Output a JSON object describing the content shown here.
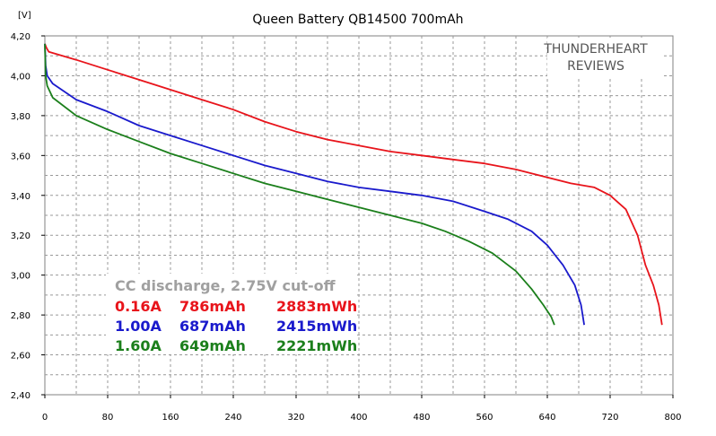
{
  "chart_data": {
    "type": "line",
    "title": "Queen Battery QB14500 700mAh",
    "unit_label": "[V]",
    "watermark": [
      "THUNDERHEART",
      "REVIEWS"
    ],
    "xlim": [
      0,
      800
    ],
    "ylim": [
      2.4,
      4.2
    ],
    "x_ticks": [
      "0",
      "80",
      "160",
      "240",
      "320",
      "400",
      "480",
      "560",
      "640",
      "720",
      "800"
    ],
    "y_ticks": [
      "2,40",
      "2,60",
      "2,80",
      "3,00",
      "3,20",
      "3,40",
      "3,60",
      "3,80",
      "4,00",
      "4,20"
    ],
    "grid": true,
    "legend_header": "CC discharge, 2.75V cut-off",
    "legend_rows": [
      {
        "current": "0.16A",
        "capacity": "786mAh",
        "energy": "2883mWh"
      },
      {
        "current": "1.00A",
        "capacity": "687mAh",
        "energy": "2415mWh"
      },
      {
        "current": "1.60A",
        "capacity": "649mAh",
        "energy": "2221mWh"
      }
    ],
    "colors": {
      "red": "#e8141b",
      "blue": "#1a1acc",
      "green": "#1b7f1b",
      "legend_header": "#a0a0a0"
    },
    "series": [
      {
        "color": "#e8141b",
        "x": [
          0,
          2,
          5,
          40,
          80,
          120,
          160,
          200,
          240,
          280,
          320,
          360,
          400,
          440,
          480,
          520,
          560,
          600,
          640,
          670,
          700,
          720,
          740,
          755,
          765,
          775,
          782,
          786
        ],
        "y": [
          4.16,
          4.14,
          4.12,
          4.08,
          4.03,
          3.98,
          3.93,
          3.88,
          3.83,
          3.77,
          3.72,
          3.68,
          3.65,
          3.62,
          3.6,
          3.58,
          3.56,
          3.53,
          3.49,
          3.46,
          3.44,
          3.4,
          3.33,
          3.2,
          3.05,
          2.95,
          2.85,
          2.75
        ]
      },
      {
        "color": "#1a1acc",
        "x": [
          0,
          1,
          3,
          10,
          40,
          80,
          120,
          160,
          200,
          240,
          280,
          320,
          360,
          400,
          440,
          480,
          520,
          560,
          590,
          620,
          640,
          660,
          675,
          683,
          687
        ],
        "y": [
          4.16,
          4.05,
          4.0,
          3.96,
          3.88,
          3.82,
          3.75,
          3.7,
          3.65,
          3.6,
          3.55,
          3.51,
          3.47,
          3.44,
          3.42,
          3.4,
          3.37,
          3.32,
          3.28,
          3.22,
          3.15,
          3.05,
          2.95,
          2.85,
          2.75
        ]
      },
      {
        "color": "#1b7f1b",
        "x": [
          0,
          1,
          3,
          10,
          40,
          80,
          120,
          160,
          200,
          240,
          280,
          320,
          360,
          400,
          440,
          480,
          510,
          540,
          570,
          600,
          620,
          635,
          645,
          649
        ],
        "y": [
          4.16,
          4.0,
          3.95,
          3.89,
          3.8,
          3.73,
          3.67,
          3.61,
          3.56,
          3.51,
          3.46,
          3.42,
          3.38,
          3.34,
          3.3,
          3.26,
          3.22,
          3.17,
          3.11,
          3.02,
          2.93,
          2.85,
          2.79,
          2.75
        ]
      }
    ]
  }
}
